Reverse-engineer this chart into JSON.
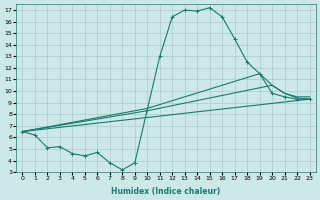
{
  "xlabel": "Humidex (Indice chaleur)",
  "bg_color": "#cde8e8",
  "grid_color": "#a8cccc",
  "line_color": "#1a7a6e",
  "xlim": [
    -0.5,
    23.5
  ],
  "ylim": [
    3,
    17.5
  ],
  "xticks": [
    0,
    1,
    2,
    3,
    4,
    5,
    6,
    7,
    8,
    9,
    10,
    11,
    12,
    13,
    14,
    15,
    16,
    17,
    18,
    19,
    20,
    21,
    22,
    23
  ],
  "yticks": [
    3,
    4,
    5,
    6,
    7,
    8,
    9,
    10,
    11,
    12,
    13,
    14,
    15,
    16,
    17
  ],
  "line1_x": [
    0,
    1,
    2,
    3,
    4,
    5,
    6,
    7,
    8,
    9,
    10,
    11,
    12,
    13,
    14,
    15,
    16,
    17,
    18,
    19,
    20,
    21,
    22,
    23
  ],
  "line1_y": [
    6.5,
    6.2,
    5.1,
    5.2,
    4.6,
    4.4,
    4.7,
    3.8,
    3.2,
    3.8,
    8.4,
    13.0,
    16.4,
    17.0,
    16.9,
    17.2,
    16.4,
    14.5,
    12.5,
    11.5,
    9.8,
    9.5,
    9.3,
    9.3
  ],
  "line2_x": [
    0,
    10,
    19,
    20,
    21,
    22,
    23
  ],
  "line2_y": [
    6.5,
    8.5,
    11.5,
    10.5,
    9.8,
    9.5,
    9.5
  ],
  "line3_x": [
    0,
    10,
    20,
    21,
    22,
    23
  ],
  "line3_y": [
    6.5,
    8.3,
    10.5,
    9.8,
    9.4,
    9.3
  ],
  "line4_x": [
    0,
    23
  ],
  "line4_y": [
    6.5,
    9.3
  ]
}
